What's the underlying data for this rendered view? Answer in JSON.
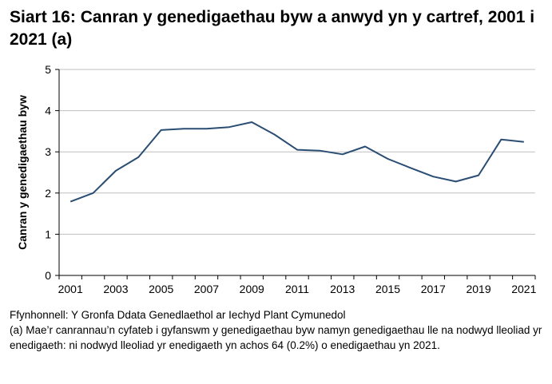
{
  "chart_data": {
    "type": "line",
    "title": "Siart 16: Canran y genedigaethau byw a anwyd yn y cartref, 2001 i 2021 (a)",
    "xlabel": "",
    "ylabel": "Canran y genedigaethau byw",
    "ylim": [
      0,
      5
    ],
    "yticks": [
      "0",
      "1",
      "2",
      "3",
      "4",
      "5"
    ],
    "grid": true,
    "line_color": "#2a4d73",
    "categories": [
      "2001",
      "2002",
      "2003",
      "2004",
      "2005",
      "2006",
      "2007",
      "2008",
      "2009",
      "2010",
      "2011",
      "2012",
      "2013",
      "2014",
      "2015",
      "2016",
      "2017",
      "2018",
      "2019",
      "2020",
      "2021"
    ],
    "xtick_labels": [
      "2001",
      "2003",
      "2005",
      "2007",
      "2009",
      "2011",
      "2013",
      "2015",
      "2017",
      "2019",
      "2021"
    ],
    "values": [
      1.79,
      2.0,
      2.54,
      2.87,
      3.53,
      3.56,
      3.56,
      3.6,
      3.72,
      3.42,
      3.05,
      3.03,
      2.94,
      3.13,
      2.83,
      2.61,
      2.4,
      2.28,
      2.43,
      3.3,
      3.24
    ]
  },
  "notes": {
    "source": "Ffynhonnell: Y Gronfa Ddata Genedlaethol ar Iechyd Plant Cymunedol",
    "footnote": "(a) Mae’r canrannau’n cyfateb i gyfanswm y genedigaethau byw namyn genedigaethau lle na nodwyd lleoliad yr enedigaeth: ni nodwyd lleoliad yr enedigaeth yn achos 64 (0.2%) o enedigaethau yn 2021."
  }
}
